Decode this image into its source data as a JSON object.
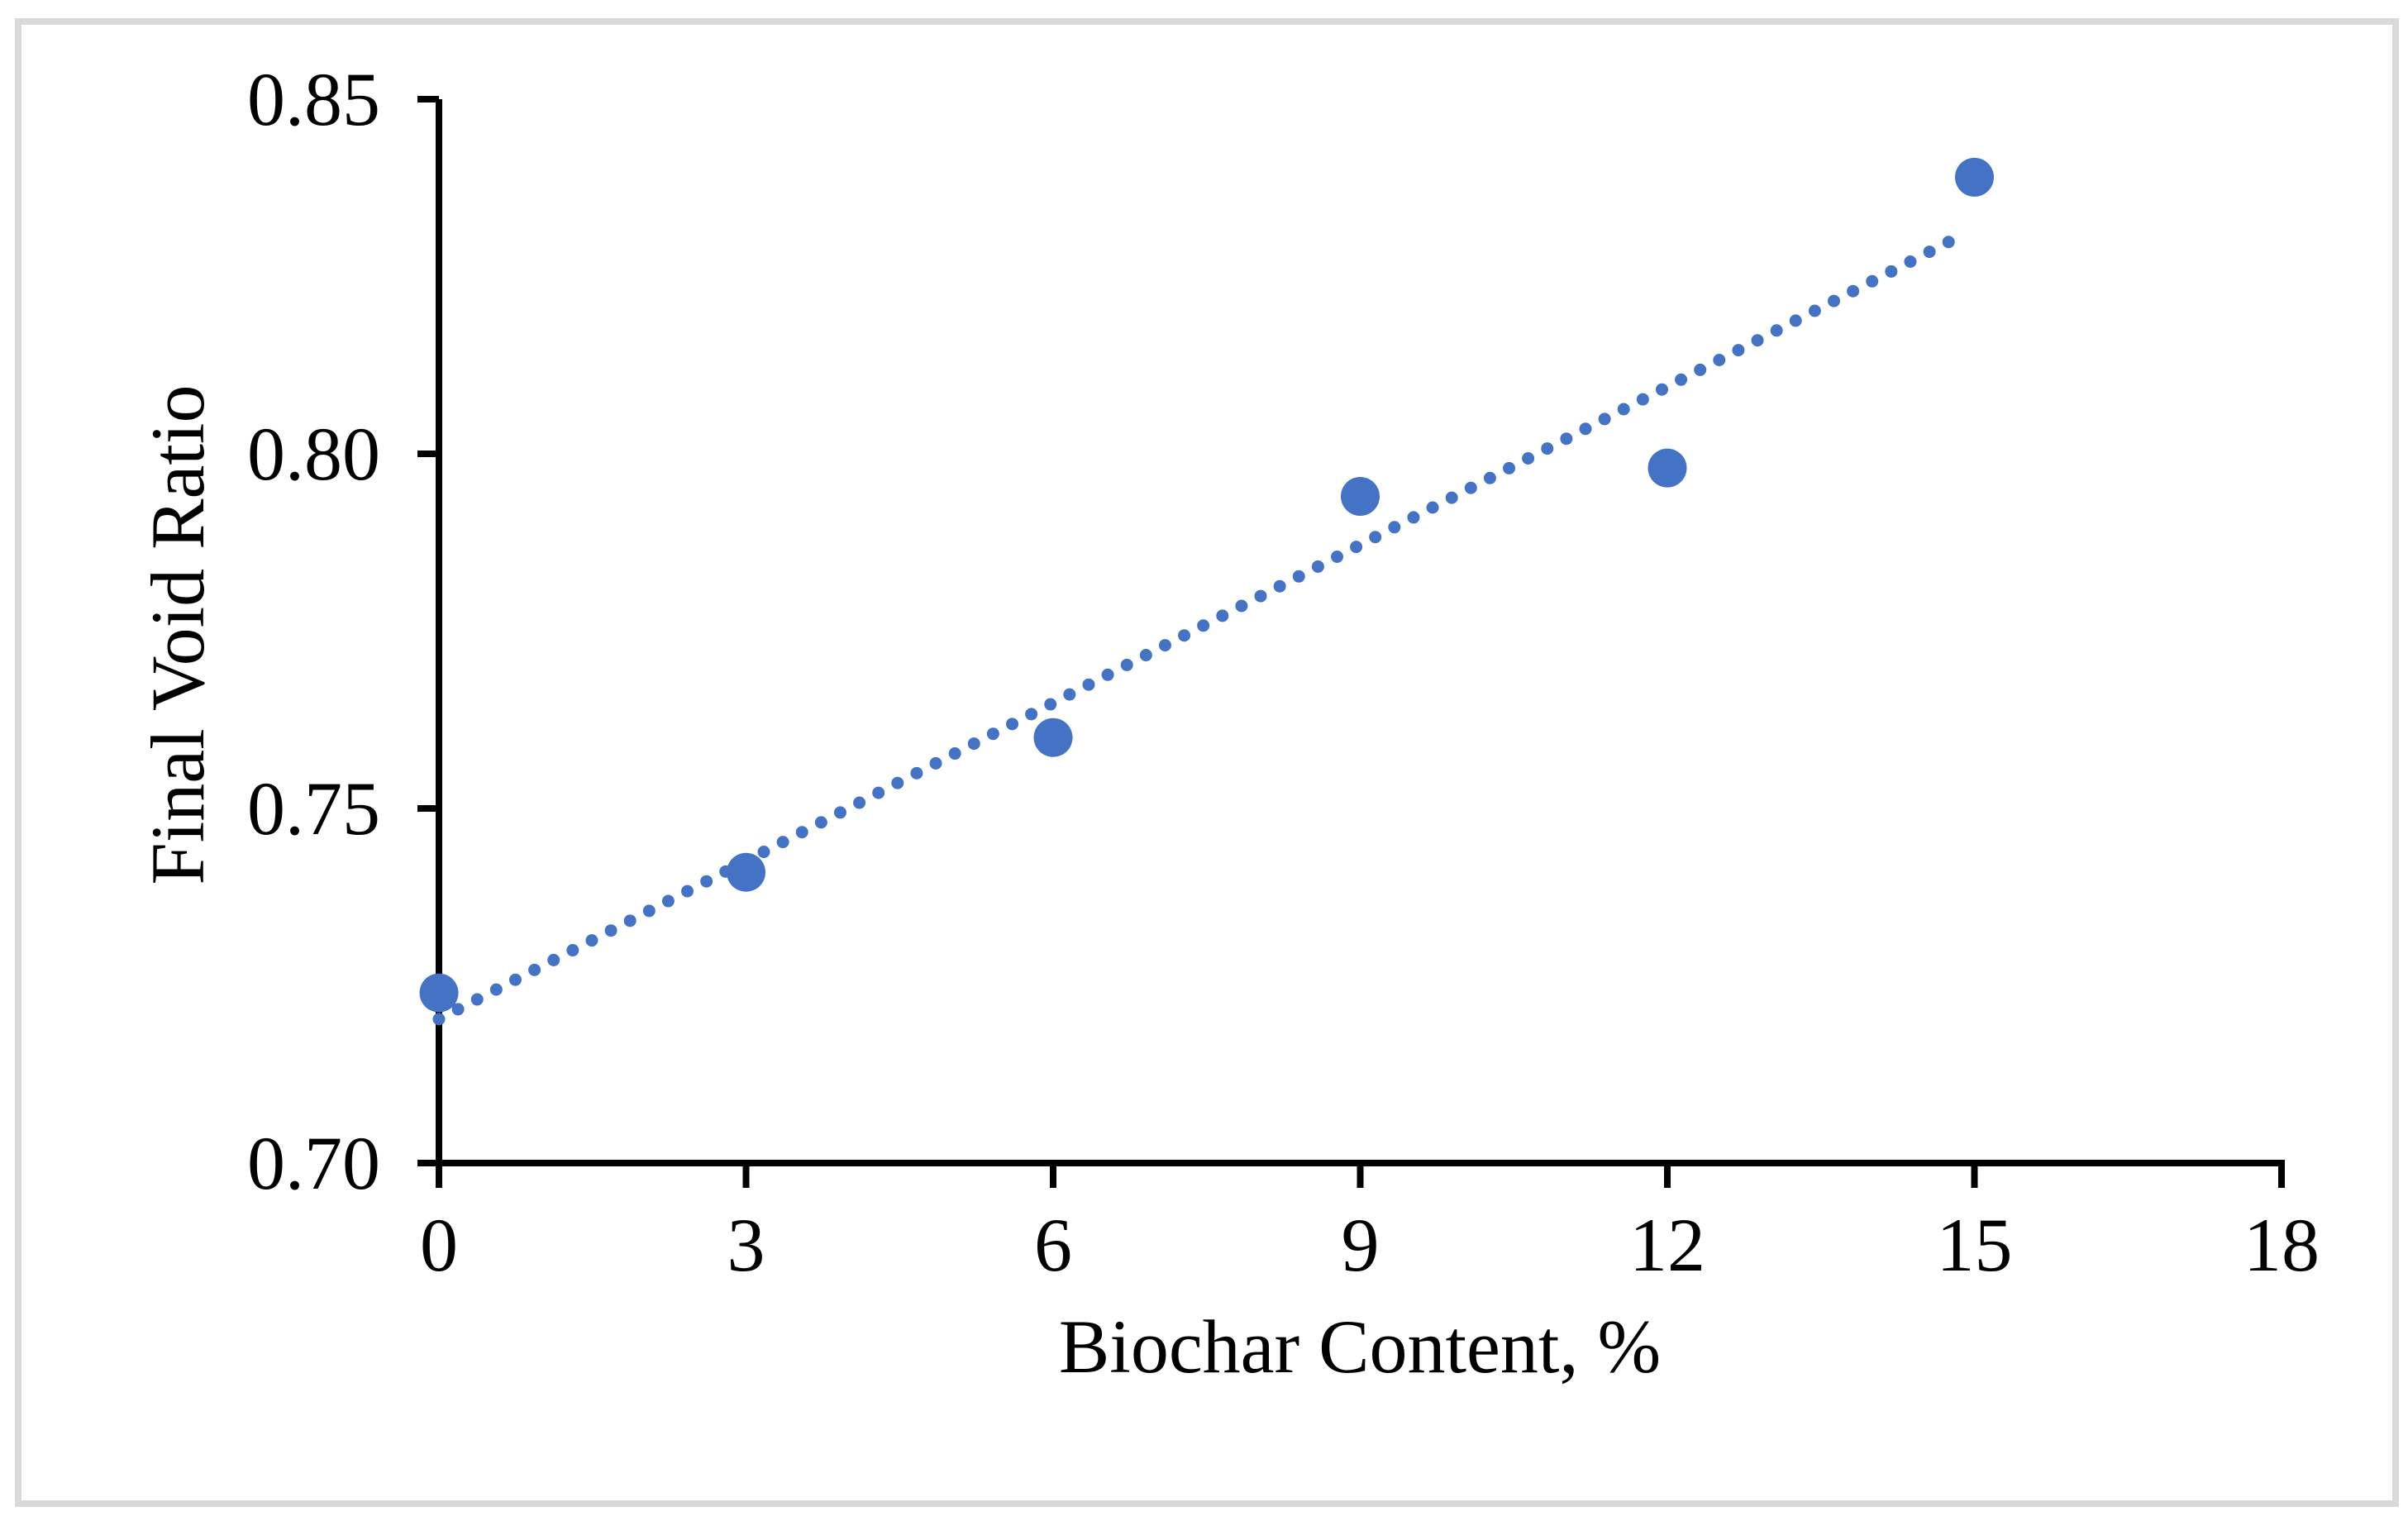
{
  "figure": {
    "background": "#FFFFFF",
    "frame_border_color": "#D9D9D9",
    "axis_color": "#000000",
    "text_color": "#000000"
  },
  "chart_data": {
    "type": "scatter",
    "title": "",
    "xlabel": "Biochar Content, %",
    "ylabel": "Final Void Ratio",
    "x": [
      0,
      3,
      6,
      9,
      12,
      15
    ],
    "y": [
      0.724,
      0.741,
      0.76,
      0.794,
      0.798,
      0.839
    ],
    "xlim": [
      0,
      18
    ],
    "ylim": [
      0.7,
      0.85
    ],
    "xticks": [
      0,
      3,
      6,
      9,
      12,
      15,
      18
    ],
    "xtick_labels": [
      "0",
      "3",
      "6",
      "9",
      "12",
      "15",
      "18"
    ],
    "yticks": [
      0.7,
      0.75,
      0.8,
      0.85
    ],
    "ytick_labels": [
      "0.70",
      "0.75",
      "0.80",
      "0.85"
    ],
    "grid": false,
    "legend": "none",
    "marker_color": "#4472C4",
    "marker_shape": "circle",
    "trendline": {
      "type": "linear",
      "line_style": "dotted",
      "color": "#4472C4",
      "slope": 0.00743,
      "intercept": 0.7203,
      "x_start": 0,
      "x_end": 14.93
    }
  }
}
